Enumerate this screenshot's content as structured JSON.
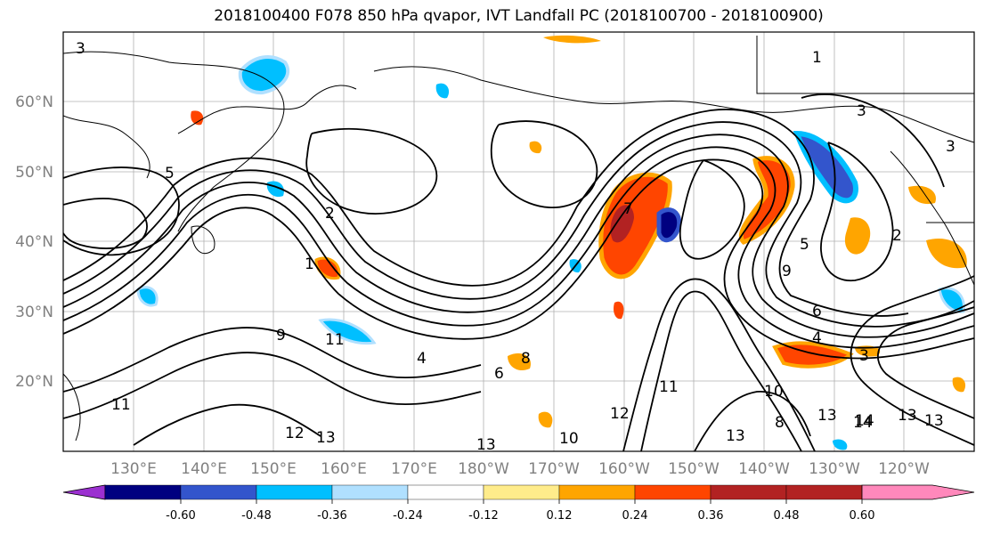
{
  "title": "2018100400 F078 850 hPa qvapor, IVT Landfall PC (2018100700 - 2018100900)",
  "lat_labels": [
    "60°N",
    "50°N",
    "40°N",
    "30°N",
    "20°N"
  ],
  "lon_labels": [
    "130°E",
    "140°E",
    "150°E",
    "160°E",
    "170°E",
    "180°W",
    "170°W",
    "160°W",
    "150°W",
    "140°W",
    "130°W",
    "120°W"
  ],
  "colorbar": {
    "colors": [
      "#9b30d0",
      "#000080",
      "#3355cc",
      "#00bfff",
      "#b0e0ff",
      "#ffffff",
      "#ffec8b",
      "#ffa500",
      "#ff4500",
      "#b22222",
      "#ff88bb"
    ],
    "tick_labels": [
      "-0.60",
      "-0.48",
      "-0.36",
      "-0.24",
      "-0.12",
      "0.12",
      "0.24",
      "0.36",
      "0.48",
      "0.60"
    ]
  },
  "contour_labels": [
    "3",
    "5",
    "1",
    "2",
    "9",
    "11",
    "13",
    "4",
    "6",
    "8",
    "10",
    "12",
    "14",
    "7",
    "13",
    "13",
    "1",
    "3",
    "3",
    "5",
    "9",
    "11",
    "13",
    "10",
    "8",
    "6",
    "4",
    "2",
    "3",
    "13",
    "13",
    "14",
    "11",
    "12"
  ]
}
